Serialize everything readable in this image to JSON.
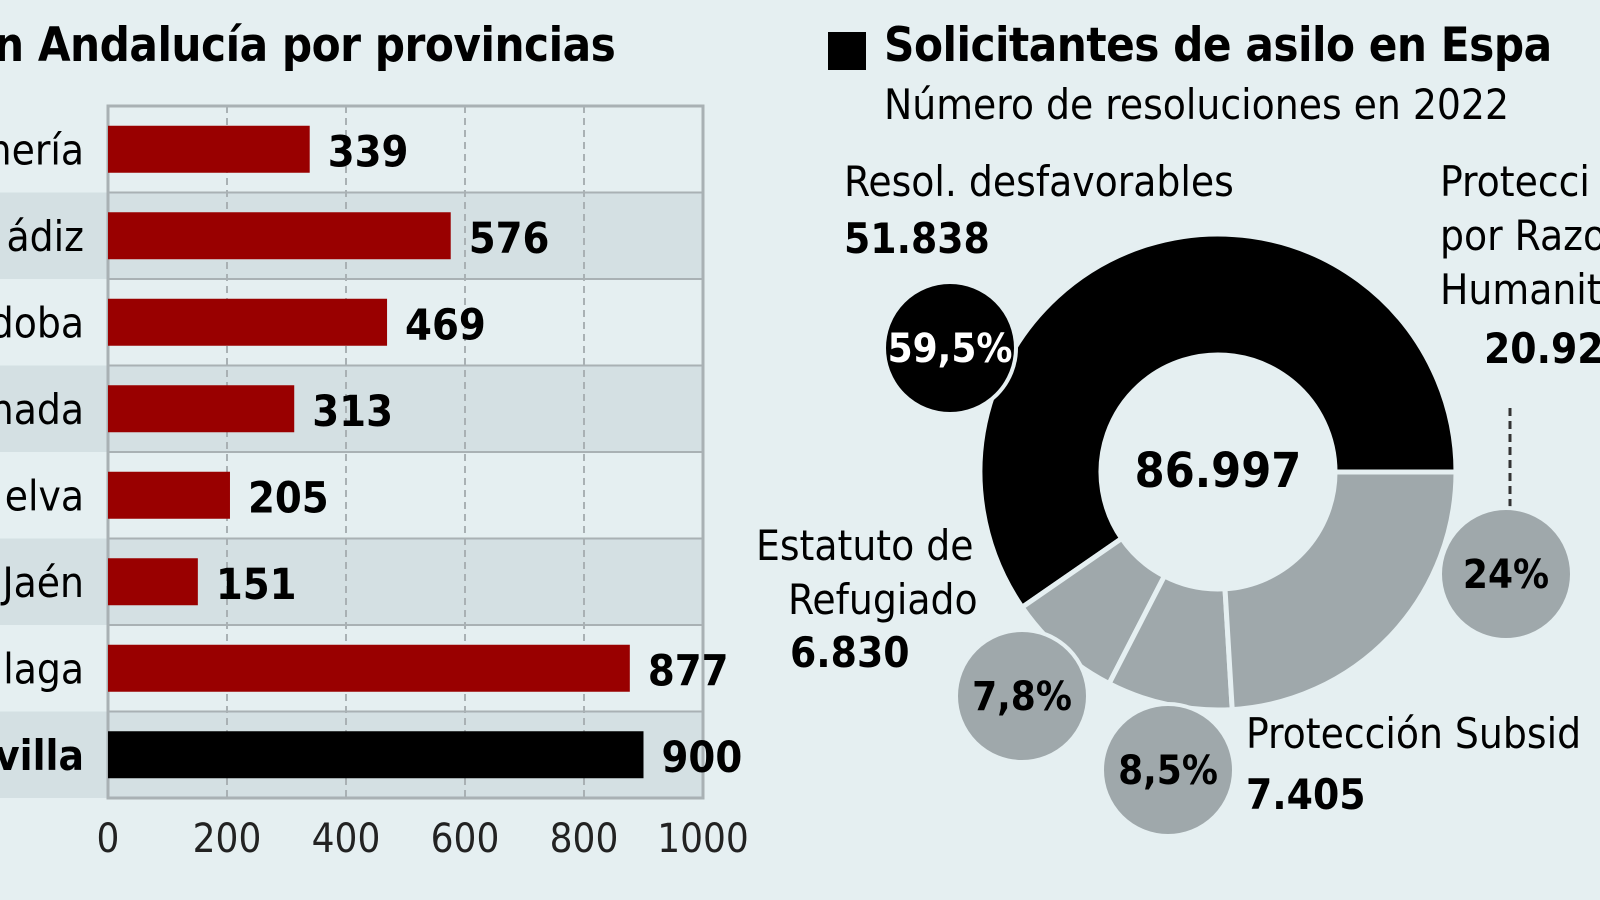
{
  "left_panel": {
    "title": "n Andalucía por provincias"
  },
  "right_panel": {
    "title": "Solicitantes de asilo en Espa",
    "subtitle": "Número de resoluciones en 2022"
  },
  "colors": {
    "background": "#e5eff1",
    "bar_red": "#990000",
    "bar_black": "#000000",
    "band": "#d4e0e3",
    "donut_gray": "#9fa8ab",
    "grid": "#a9b1b4"
  },
  "chart_data": [
    {
      "type": "bar",
      "orientation": "horizontal",
      "title": "n Andalucía por provincias",
      "categories": [
        "nería",
        "ádiz",
        "doba",
        "nada",
        "elva",
        "Jaén",
        "laga",
        "villa"
      ],
      "values": [
        339,
        576,
        469,
        313,
        205,
        151,
        877,
        900
      ],
      "value_labels": [
        "339",
        "576",
        "469",
        "313",
        "205",
        "151",
        "877",
        "900"
      ],
      "highlight_index": 7,
      "xlim": [
        0,
        1000
      ],
      "xticks": [
        "0",
        "200",
        "400",
        "600",
        "800",
        "1000"
      ],
      "grid": true
    },
    {
      "type": "pie",
      "style": "donut",
      "title": "Solicitantes de asilo en Espa",
      "subtitle": "Número de resoluciones en 2022",
      "total_label": "86.997",
      "slices": [
        {
          "name_lines": [
            "Resol. desfavorables"
          ],
          "value_label": "51.838",
          "percent": 59.5,
          "percent_label": "59,5%",
          "color": "#000000"
        },
        {
          "name_lines": [
            "Protecci",
            "por Razo",
            "Humanit"
          ],
          "value_label": "20.92",
          "percent": 24.0,
          "percent_label": "24%",
          "color": "#9fa8ab"
        },
        {
          "name_lines": [
            "Protección Subsid"
          ],
          "value_label": "7.405",
          "percent": 8.5,
          "percent_label": "8,5%",
          "color": "#9fa8ab"
        },
        {
          "name_lines": [
            "Estatuto de",
            "Refugiado"
          ],
          "value_label": "6.830",
          "percent": 7.8,
          "percent_label": "7,8%",
          "color": "#9fa8ab"
        }
      ]
    }
  ]
}
